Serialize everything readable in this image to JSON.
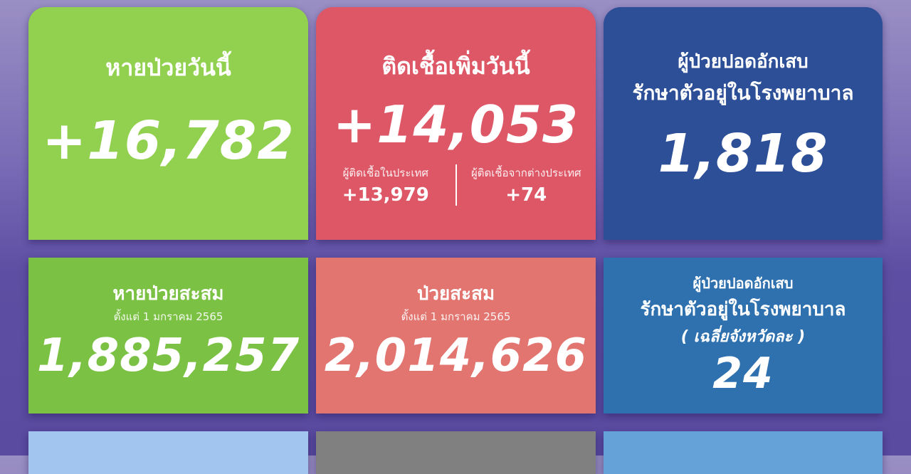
{
  "colors": {
    "green_top": "#92d14f",
    "red_top": "#de5766",
    "blue_top": "#2d4f98",
    "green_mid": "#7bc143",
    "salmon_mid": "#e27570",
    "blue_mid": "#2f71af",
    "lightblue_bottom": "#a1c5ef",
    "gray_bottom": "#808080",
    "blue_bottom": "#64a2d8"
  },
  "recovered_today": {
    "label": "หายป่วยวันนี้",
    "value": "+16,782"
  },
  "new_cases_today": {
    "label": "ติดเชื้อเพิ่มวันนี้",
    "value": "+14,053",
    "domestic_label": "ผู้ติดเชื้อในประเทศ",
    "domestic_value": "+13,979",
    "imported_label": "ผู้ติดเชื้อจากต่างประเทศ",
    "imported_value": "+74"
  },
  "pneumonia_hospital": {
    "label1": "ผู้ป่วยปอดอักเสบ",
    "label2": "รักษาตัวอยู่ในโรงพยาบาล",
    "value": "1,818"
  },
  "recovered_cumulative": {
    "label": "หายป่วยสะสม",
    "since": "ตั้งแต่ 1 มกราคม 2565",
    "value": "1,885,257"
  },
  "cases_cumulative": {
    "label": "ป่วยสะสม",
    "since": "ตั้งแต่ 1 มกราคม 2565",
    "value": "2,014,626"
  },
  "pneumonia_avg": {
    "label1": "ผู้ป่วยปอดอักเสบ",
    "label2": "รักษาตัวอยู่ในโรงพยาบาล",
    "label3": "( เฉลี่ยจังหวัดละ )",
    "value": "24"
  }
}
